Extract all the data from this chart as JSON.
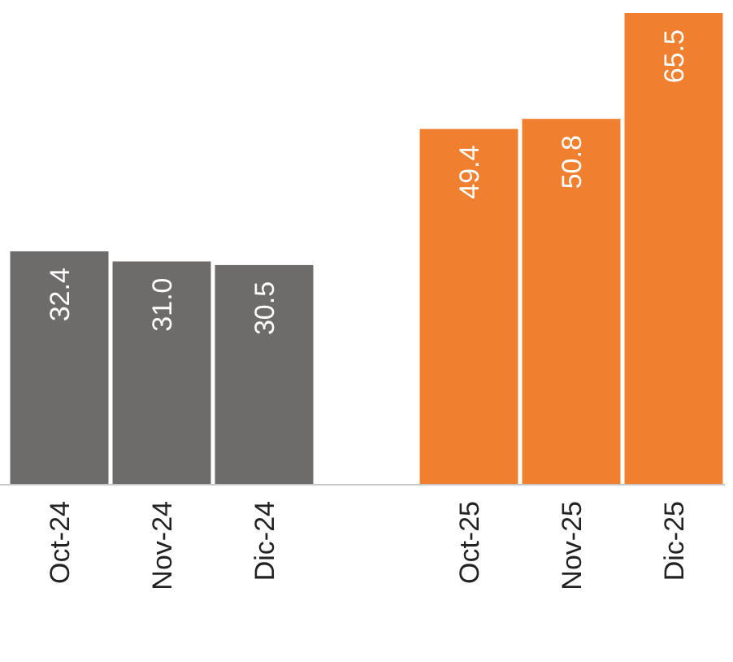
{
  "chart_data": {
    "type": "bar",
    "categories": [
      "Oct-24",
      "Nov-24",
      "Dic-24",
      null,
      "Oct-25",
      "Nov-25",
      "Dic-25"
    ],
    "values": [
      32.4,
      31.0,
      30.5,
      null,
      49.4,
      50.8,
      65.5
    ],
    "colors": [
      "#6e6b6b",
      "#6e6b6b",
      "#6e6b6b",
      null,
      "#f07f2f",
      "#f07f2f",
      "#f07f2f"
    ],
    "value_labels": [
      "32.4",
      "31.0",
      "30.5",
      null,
      "49.4",
      "50.8",
      "65.5"
    ],
    "tick_labels": "x"
  }
}
